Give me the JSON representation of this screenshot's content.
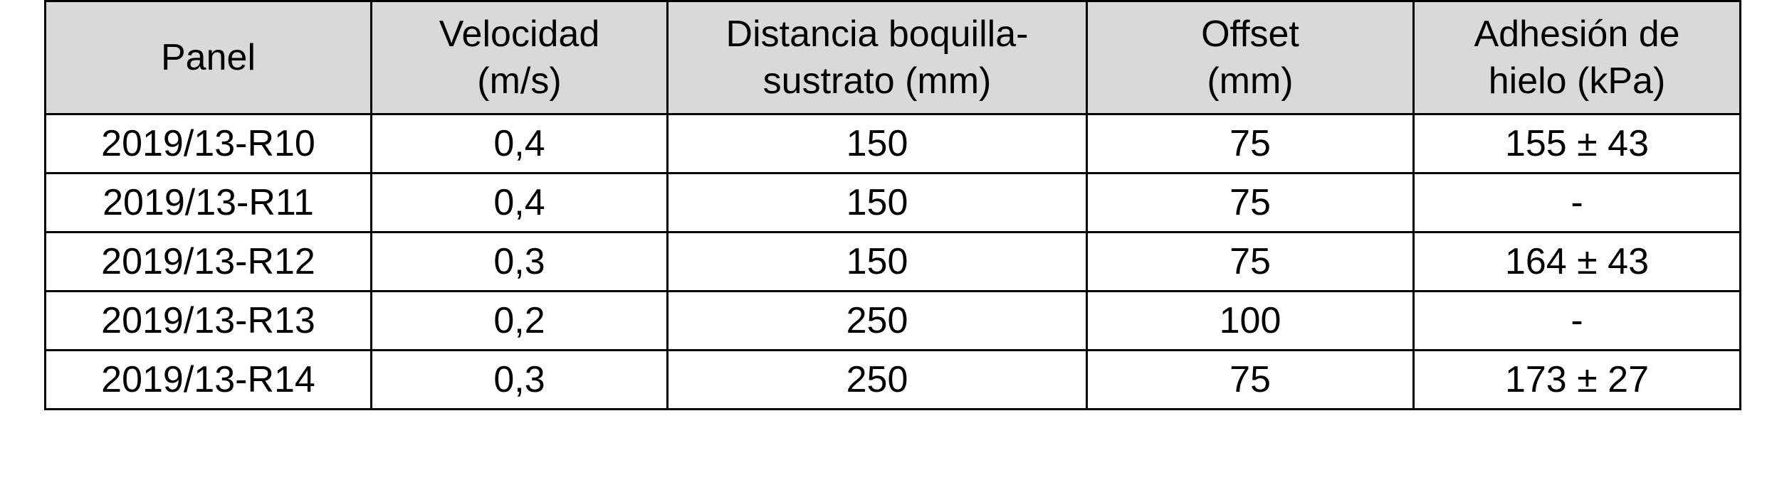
{
  "table": {
    "headers": [
      [
        "Panel"
      ],
      [
        "Velocidad",
        "(m/s)"
      ],
      [
        "Distancia boquilla-",
        "sustrato (mm)"
      ],
      [
        "Offset",
        "(mm)"
      ],
      [
        "Adhesión de",
        "hielo (kPa)"
      ]
    ],
    "rows": [
      [
        "2019/13-R10",
        "0,4",
        "150",
        "75",
        "155 ± 43"
      ],
      [
        "2019/13-R11",
        "0,4",
        "150",
        "75",
        "-"
      ],
      [
        "2019/13-R12",
        "0,3",
        "150",
        "75",
        "164 ± 43"
      ],
      [
        "2019/13-R13",
        "0,2",
        "250",
        "100",
        "-"
      ],
      [
        "2019/13-R14",
        "0,3",
        "250",
        "75",
        "173 ± 27"
      ]
    ],
    "header_bg": "#d9d9d9"
  }
}
